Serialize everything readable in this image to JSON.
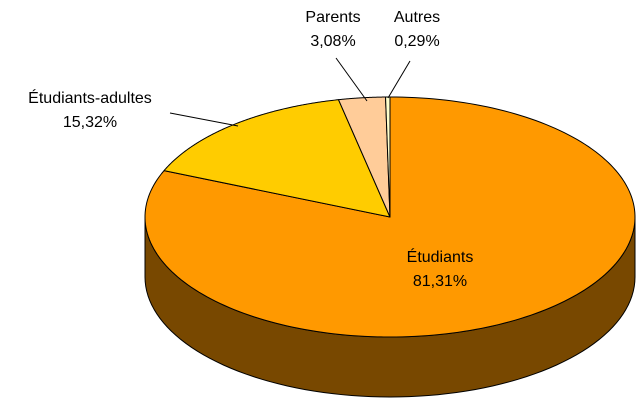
{
  "chart_data": {
    "type": "pie",
    "categories": [
      "Étudiants",
      "Étudiants-adultes",
      "Parents",
      "Autres"
    ],
    "values": [
      81.31,
      15.32,
      3.08,
      0.29
    ],
    "value_labels": [
      "81,31%",
      "15,32%",
      "3,08%",
      "0,29%"
    ],
    "colors": [
      "#ff9900",
      "#ffcc00",
      "#ffcc99",
      "#ffffcc"
    ],
    "start_angle": 90,
    "direction": "clockwise",
    "three_d": true
  }
}
